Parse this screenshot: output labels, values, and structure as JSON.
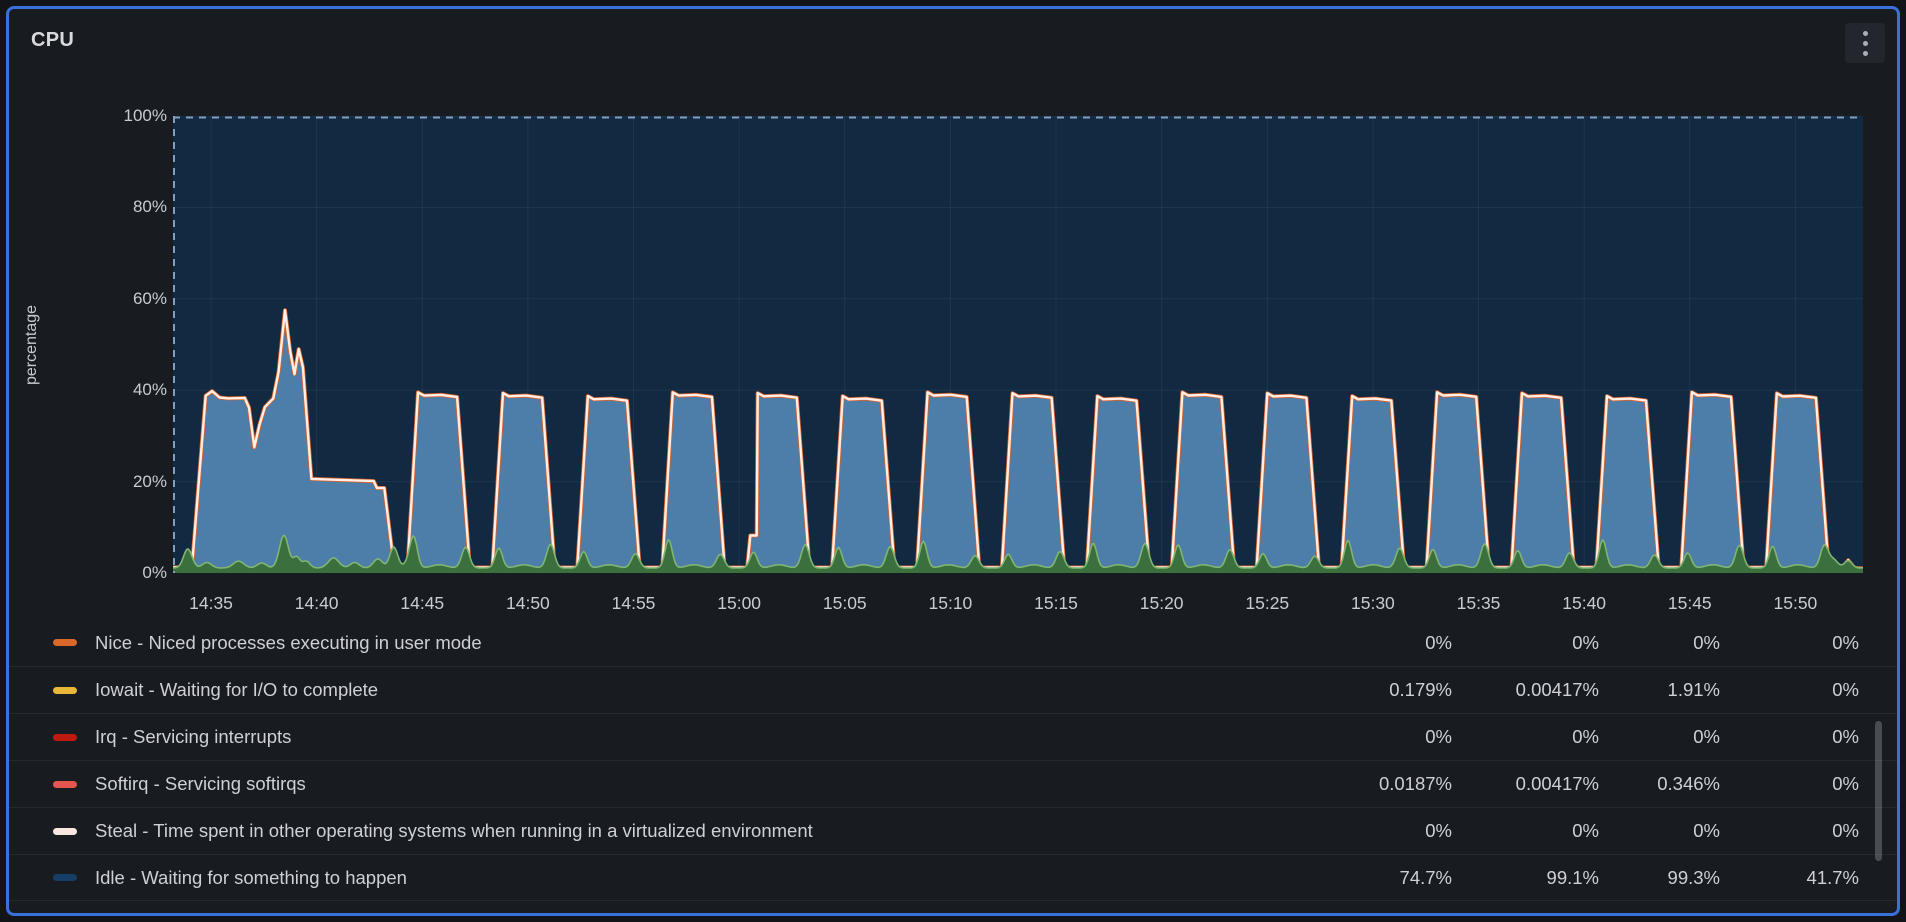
{
  "panel": {
    "title": "CPU"
  },
  "colors": {
    "accent_border": "#3A70DB",
    "panel_bg": "#181B1F",
    "idle_fill": "#112941",
    "busy_fill": "#4C7EA9",
    "line_white": "#FFEFE6",
    "line_orange": "#D9622B",
    "green_fill": "#3C6F3E",
    "green_line": "#7FB572",
    "dashed_line": "#7F9EC0",
    "grid": "rgba(169,183,203,0.09)",
    "axis_text": "#C9CBD4"
  },
  "chart_data": {
    "type": "area",
    "title": "CPU",
    "ylabel": "percentage",
    "ylim": [
      0,
      100
    ],
    "y_tick_labels": [
      "100%",
      "80%",
      "60%",
      "40%",
      "20%",
      "0%"
    ],
    "x_tick_labels": [
      "14:35",
      "14:40",
      "14:45",
      "14:50",
      "14:55",
      "15:00",
      "15:05",
      "15:10",
      "15:15",
      "15:20",
      "15:25",
      "15:30",
      "15:35",
      "15:40",
      "15:45",
      "15:50"
    ],
    "x_total_minutes": 80,
    "x_first_tick_offset_min": 1.8,
    "x_tick_interval_min": 5,
    "stacked": true,
    "legend_position": "bottom-table",
    "grid": true,
    "idle_band_note": "dark navy fill occupies everything above the busy line up to the dashed 100% idle line",
    "busy_line": {
      "initial_points": [
        [
          0,
          1.2
        ],
        [
          0.9,
          1.4
        ],
        [
          1.55,
          38.8
        ],
        [
          1.85,
          39.8
        ],
        [
          2.2,
          38.4
        ],
        [
          2.6,
          38.2
        ],
        [
          3.4,
          38.3
        ],
        [
          3.6,
          36.2
        ],
        [
          3.85,
          27.5
        ],
        [
          4.1,
          32.5
        ],
        [
          4.35,
          36.3
        ],
        [
          4.75,
          38.2
        ],
        [
          5.0,
          44
        ],
        [
          5.3,
          57.5
        ],
        [
          5.55,
          48.5
        ],
        [
          5.75,
          43.5
        ],
        [
          5.95,
          49
        ],
        [
          6.15,
          45
        ],
        [
          6.55,
          20.6
        ],
        [
          9.5,
          20.1
        ],
        [
          9.65,
          18.6
        ],
        [
          10.0,
          18.6
        ],
        [
          10.45,
          1.8
        ],
        [
          11.05,
          1.3
        ]
      ],
      "pulse": {
        "start": 11.1,
        "period": 4.02,
        "count": 17,
        "rise": 0.5,
        "top_len": 1.85,
        "fall": 0.6,
        "v_top": 38.5,
        "v_low": 1.2
      },
      "step_pulse_index": 4,
      "tail_points": [
        [
          78.4,
          1.2
        ],
        [
          79.0,
          1.1
        ],
        [
          79.3,
          2.8
        ],
        [
          79.6,
          1.1
        ],
        [
          80,
          1.0
        ]
      ]
    },
    "green_line": {
      "baseline": 1.1,
      "bumps": [
        [
          0.7,
          4.2,
          0.28
        ],
        [
          1.6,
          1.2,
          0.3
        ],
        [
          3.1,
          1.5,
          0.35
        ],
        [
          4.2,
          1.1,
          0.3
        ],
        [
          5.25,
          7.2,
          0.3
        ],
        [
          5.85,
          2.4,
          0.22
        ],
        [
          6.3,
          1.5,
          0.25
        ],
        [
          7.6,
          2.2,
          0.35
        ],
        [
          8.6,
          1.2,
          0.3
        ],
        [
          9.7,
          2.0,
          0.3
        ],
        [
          10.45,
          4.6,
          0.26
        ],
        [
          11.2,
          1.6,
          0.3
        ],
        [
          78.6,
          1.8,
          0.3
        ],
        [
          79.3,
          1.6,
          0.25
        ]
      ]
    }
  },
  "legend": {
    "rows": [
      {
        "label": "Nice - Niced processes executing in user mode",
        "color": "#D9682A",
        "values": [
          "0%",
          "0%",
          "0%",
          "0%"
        ]
      },
      {
        "label": "Iowait - Waiting for I/O to complete",
        "color": "#EAB839",
        "values": [
          "0.179%",
          "0.00417%",
          "1.91%",
          "0%"
        ]
      },
      {
        "label": "Irq - Servicing interrupts",
        "color": "#BE1B10",
        "values": [
          "0%",
          "0%",
          "0%",
          "0%"
        ]
      },
      {
        "label": "Softirq - Servicing softirqs",
        "color": "#E4564E",
        "values": [
          "0.0187%",
          "0.00417%",
          "0.346%",
          "0%"
        ]
      },
      {
        "label": "Steal - Time spent in other operating systems when running in a virtualized environment",
        "color": "#F9E6DF",
        "values": [
          "0%",
          "0%",
          "0%",
          "0%"
        ]
      },
      {
        "label": "Idle - Waiting for something to happen",
        "color": "#173E66",
        "values": [
          "74.7%",
          "99.1%",
          "99.3%",
          "41.7%"
        ]
      }
    ]
  }
}
